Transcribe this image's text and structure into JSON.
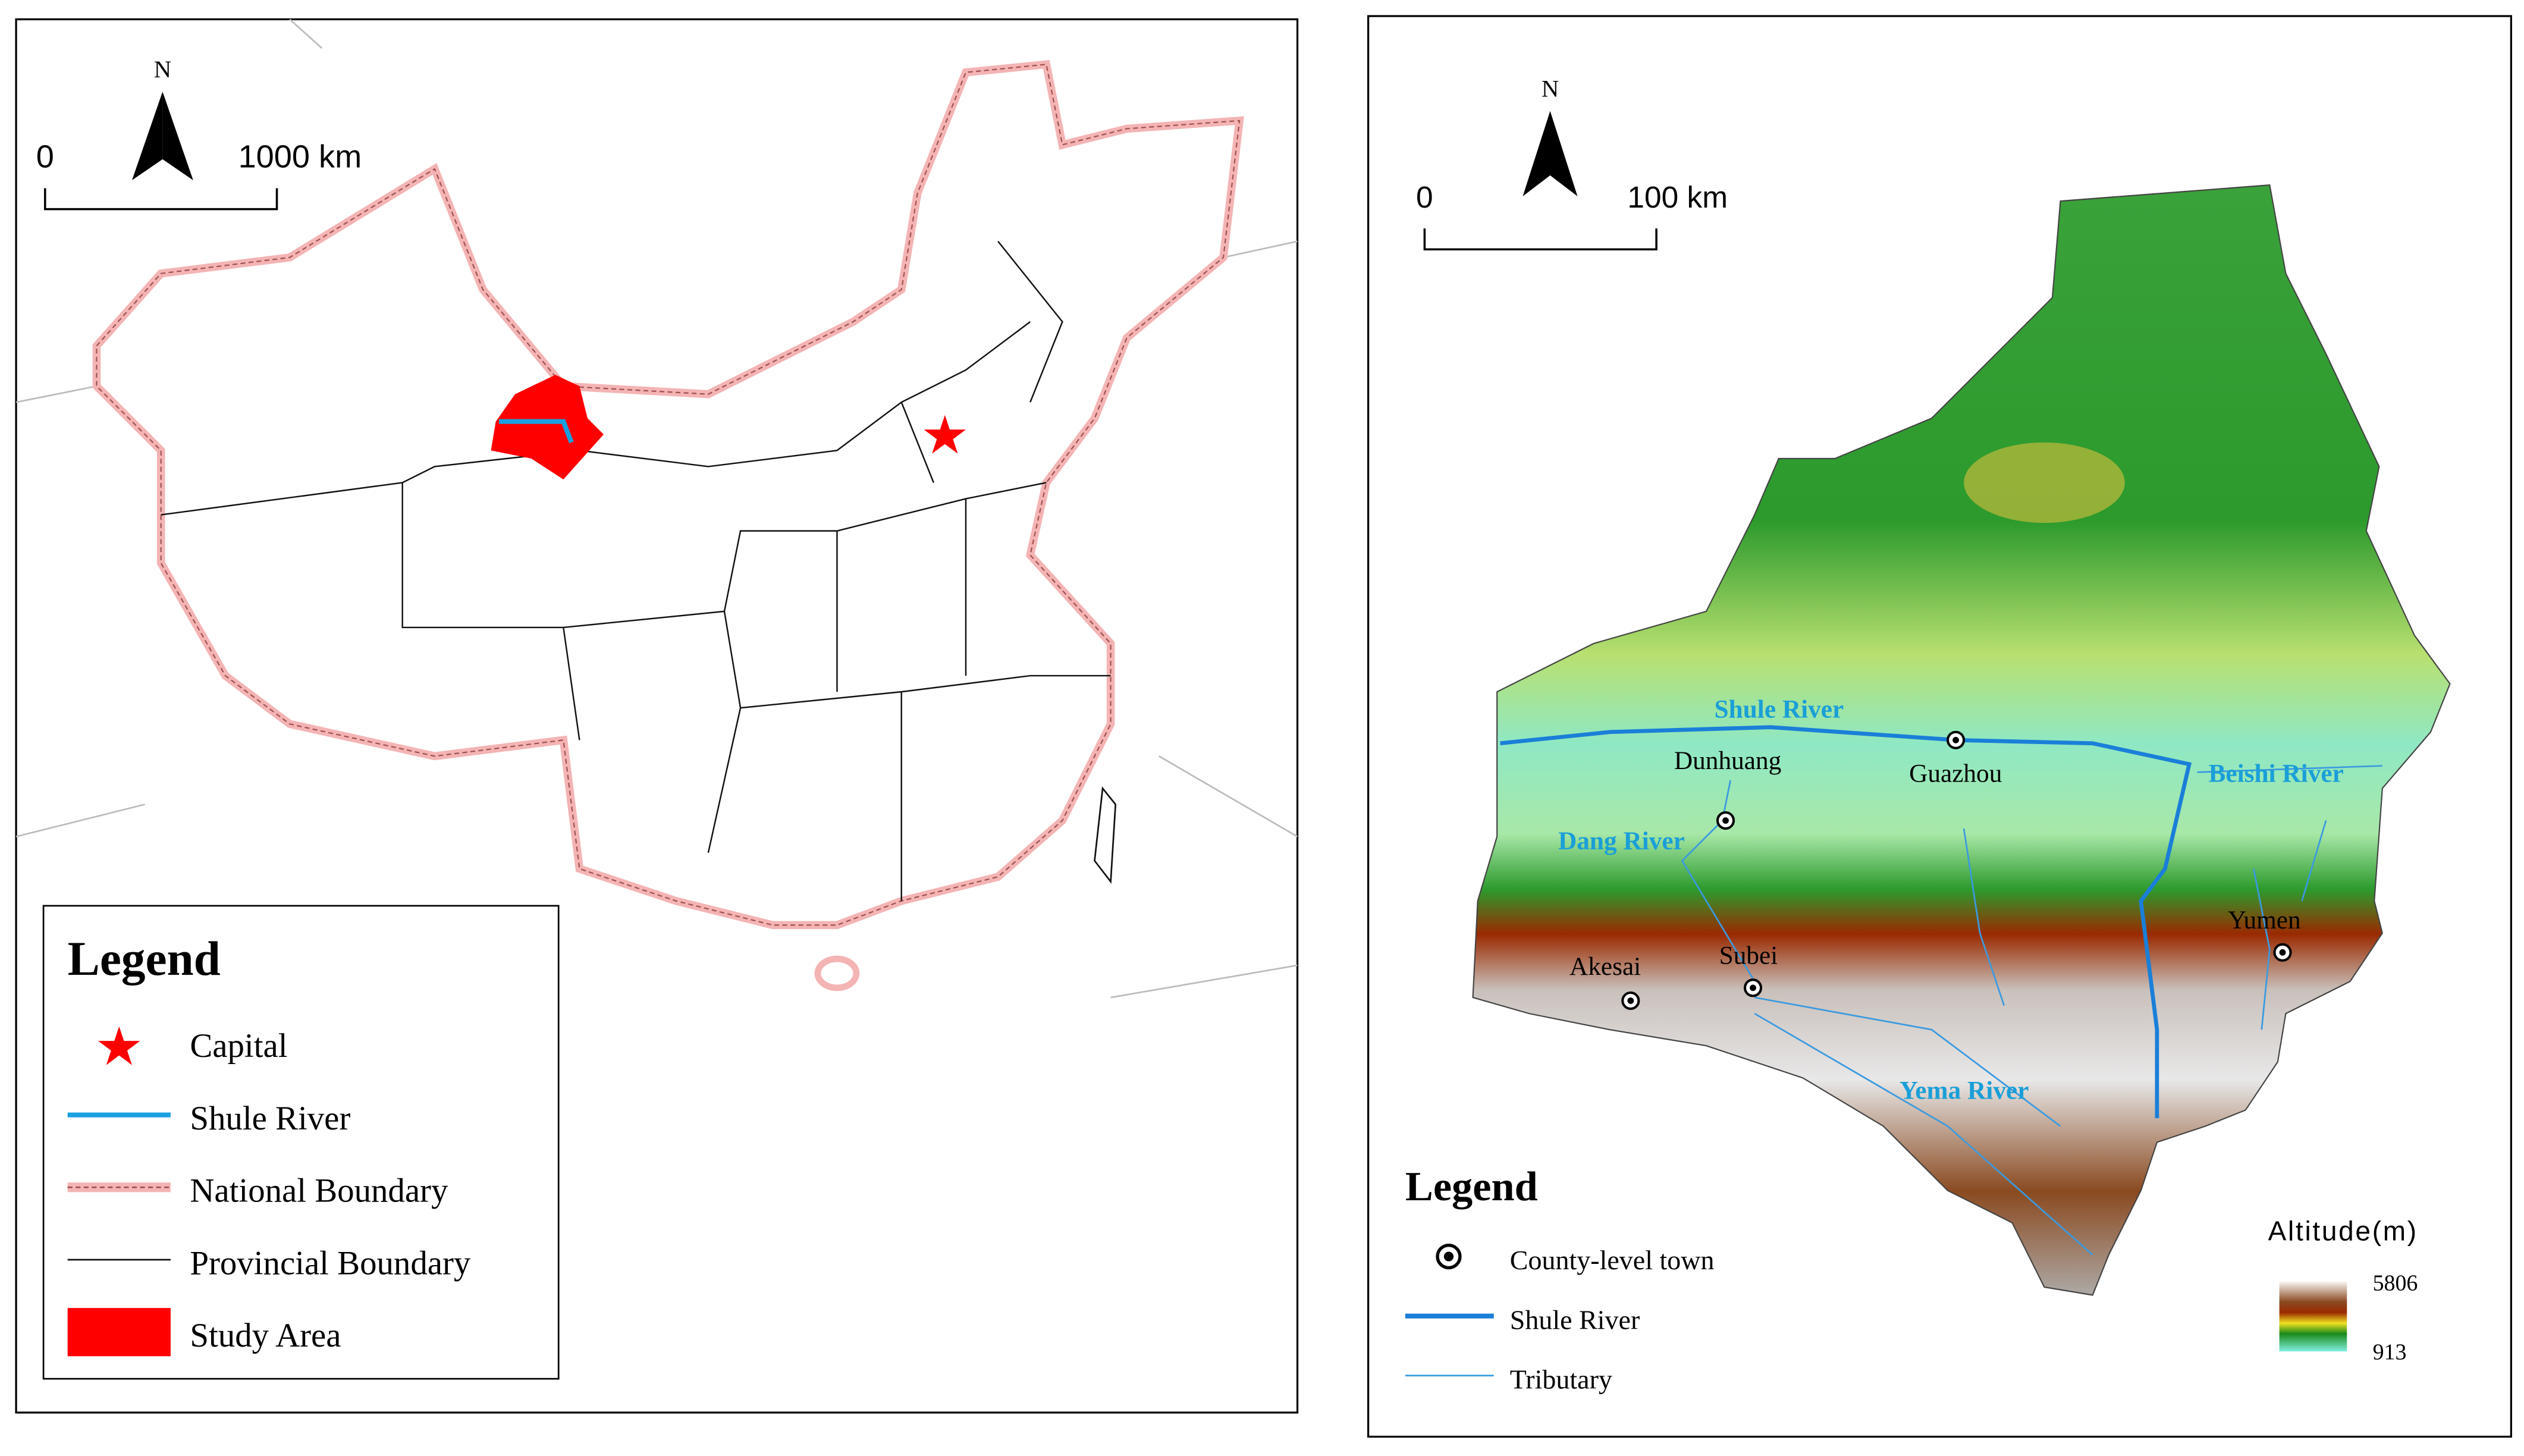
{
  "left_map": {
    "north": "N",
    "scale": {
      "start": "0",
      "end": "1000 km"
    },
    "legend": {
      "title": "Legend",
      "items": [
        "Capital",
        "Shule River",
        "National Boundary",
        "Provincial Boundary",
        "Study Area"
      ]
    }
  },
  "right_map": {
    "north": "N",
    "scale": {
      "start": "0",
      "end": "100 km"
    },
    "rivers": [
      "Shule River",
      "Dang River",
      "Beishi River",
      "Yema River"
    ],
    "towns": [
      "Dunhuang",
      "Guazhou",
      "Akesai",
      "Subei",
      "Yumen"
    ],
    "legend": {
      "title": "Legend",
      "items": [
        "County-level town",
        "Shule River",
        "Tributary"
      ]
    },
    "altitude": {
      "title": "Altitude(m)",
      "max": "5806",
      "min": "913"
    }
  }
}
